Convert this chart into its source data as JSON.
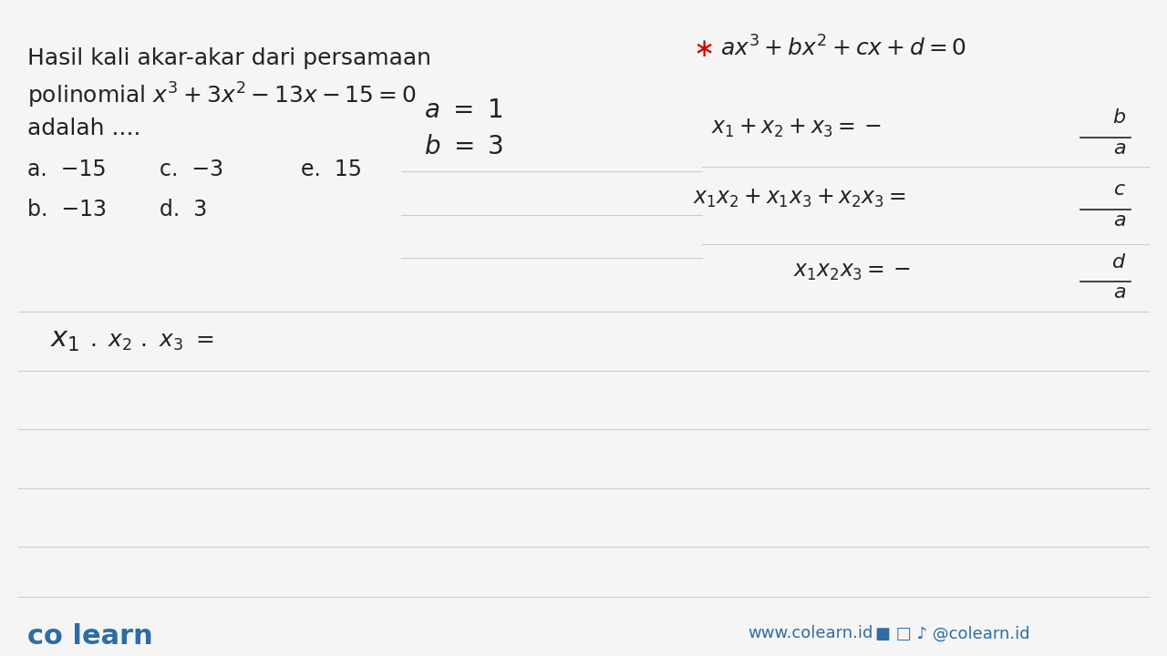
{
  "bg_color": "#f5f5f5",
  "white_color": "#ffffff",
  "text_color": "#222222",
  "gray_line_color": "#cccccc",
  "blue_color": "#2e6da4",
  "red_color": "#cc0000",
  "problem_text_line1": "Hasil kali akar-akar dari persamaan",
  "problem_text_line2": "polinomial $x^3 + 3x^2 - 13x - 15 = 0$",
  "problem_text_line3": "adalah ....",
  "options": [
    [
      "a.  −15",
      "c.  −3",
      "e.  15"
    ],
    [
      "b.  −13",
      "d.  3"
    ]
  ],
  "a_label": "$a = 1$",
  "b_label": "$b = 3$",
  "general_eq": "$ax^3 + bx^2 + cx + d = 0$",
  "formula1": "$x_1 + x_2 + x_3 = -\\dfrac{b}{a}$",
  "formula2": "$x_1x_2 + x_1x_3 + x_2x_3 = \\dfrac{c}{a}$",
  "formula3": "$x_1x_2x_3 = -\\dfrac{d}{a}$",
  "bottom_label": "$x_1 \\cdot x_2 \\cdot x_3 =$",
  "colearn_text": "co learn",
  "website_text": "www.colearn.id",
  "social_text": "@colearn.id"
}
